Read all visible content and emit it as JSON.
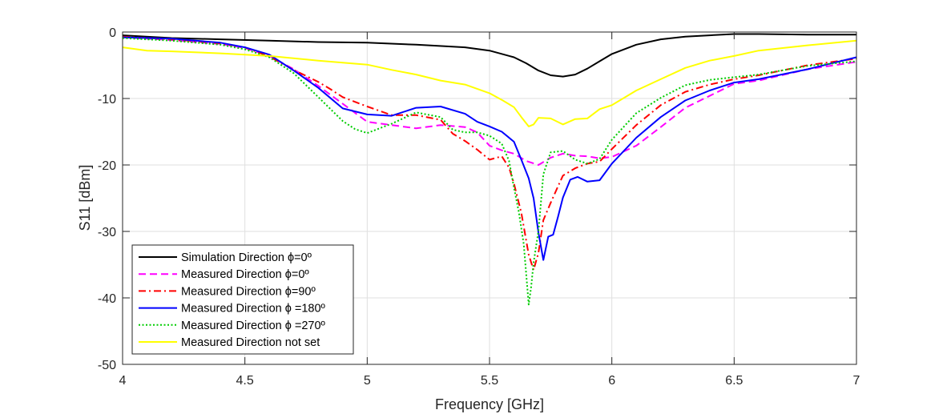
{
  "chart_data": {
    "type": "line",
    "title": "",
    "xlabel": "Frequency [GHz]",
    "ylabel": "S11 [dBm]",
    "xlim": [
      4,
      7
    ],
    "ylim": [
      -50,
      0
    ],
    "xticks": [
      4,
      4.5,
      5,
      5.5,
      6,
      6.5,
      7
    ],
    "yticks": [
      0,
      -10,
      -20,
      -30,
      -40,
      -50
    ],
    "xtick_labels": [
      "4",
      "4.5",
      "5",
      "5.5",
      "6",
      "6.5",
      "7"
    ],
    "ytick_labels": [
      "0",
      "-10",
      "-20",
      "-30",
      "-40",
      "-50"
    ],
    "grid": true,
    "legend_position": "bottom-left",
    "series": [
      {
        "name": "Simulation Direction ϕ=0º",
        "color": "#000000",
        "dash": "solid",
        "x": [
          4.0,
          4.2,
          4.4,
          4.6,
          4.8,
          5.0,
          5.2,
          5.4,
          5.5,
          5.6,
          5.65,
          5.7,
          5.75,
          5.8,
          5.85,
          5.9,
          5.95,
          6.0,
          6.1,
          6.2,
          6.3,
          6.4,
          6.5,
          6.6,
          6.8,
          7.0
        ],
        "y": [
          -0.5,
          -0.9,
          -1.1,
          -1.3,
          -1.5,
          -1.6,
          -1.9,
          -2.3,
          -2.8,
          -3.8,
          -4.7,
          -5.8,
          -6.5,
          -6.7,
          -6.4,
          -5.5,
          -4.4,
          -3.3,
          -1.9,
          -1.1,
          -0.7,
          -0.5,
          -0.3,
          -0.3,
          -0.4,
          -0.4
        ]
      },
      {
        "name": "Measured Direction ϕ=0º",
        "color": "#ff00ff",
        "dash": "dashed",
        "x": [
          4.0,
          4.2,
          4.4,
          4.5,
          4.6,
          4.7,
          4.8,
          4.9,
          5.0,
          5.1,
          5.2,
          5.3,
          5.4,
          5.45,
          5.5,
          5.55,
          5.6,
          5.65,
          5.7,
          5.75,
          5.8,
          5.85,
          5.9,
          5.95,
          6.0,
          6.1,
          6.2,
          6.3,
          6.4,
          6.5,
          6.6,
          6.8,
          7.0
        ],
        "y": [
          -0.8,
          -1.2,
          -1.8,
          -2.4,
          -3.6,
          -5.6,
          -8.1,
          -10.8,
          -13.5,
          -14.0,
          -14.5,
          -14.0,
          -14.3,
          -15.1,
          -17.1,
          -17.8,
          -18.3,
          -19.4,
          -20.0,
          -18.9,
          -18.3,
          -18.6,
          -18.7,
          -19.0,
          -18.8,
          -17.1,
          -14.3,
          -11.4,
          -9.6,
          -7.8,
          -7.3,
          -5.6,
          -4.5
        ]
      },
      {
        "name": "Measured Direction ϕ=90º",
        "color": "#ff0000",
        "dash": "dashdot",
        "x": [
          4.0,
          4.2,
          4.4,
          4.5,
          4.6,
          4.7,
          4.8,
          4.85,
          4.9,
          5.0,
          5.1,
          5.2,
          5.3,
          5.35,
          5.4,
          5.45,
          5.5,
          5.55,
          5.58,
          5.6,
          5.63,
          5.66,
          5.68,
          5.7,
          5.72,
          5.75,
          5.78,
          5.8,
          5.85,
          5.9,
          5.95,
          6.0,
          6.1,
          6.2,
          6.3,
          6.4,
          6.5,
          6.6,
          6.8,
          7.0
        ],
        "y": [
          -0.7,
          -1.1,
          -1.7,
          -2.3,
          -3.7,
          -5.7,
          -7.5,
          -8.6,
          -9.8,
          -11.2,
          -12.5,
          -12.5,
          -13.2,
          -15.3,
          -16.4,
          -17.7,
          -19.2,
          -18.7,
          -20.4,
          -22.8,
          -27.2,
          -33.5,
          -35.8,
          -33.2,
          -28.3,
          -25.7,
          -23.2,
          -21.6,
          -20.5,
          -19.8,
          -19.5,
          -17.6,
          -14.0,
          -11.0,
          -9.0,
          -7.9,
          -7.1,
          -6.5,
          -5.0,
          -4.0
        ]
      },
      {
        "name": "Measured Direction ϕ =180º",
        "color": "#0000ff",
        "dash": "solid",
        "x": [
          4.0,
          4.2,
          4.4,
          4.5,
          4.6,
          4.7,
          4.8,
          4.9,
          5.0,
          5.1,
          5.2,
          5.3,
          5.4,
          5.45,
          5.5,
          5.55,
          5.6,
          5.63,
          5.66,
          5.68,
          5.7,
          5.72,
          5.74,
          5.76,
          5.78,
          5.8,
          5.83,
          5.86,
          5.9,
          5.95,
          6.0,
          6.1,
          6.2,
          6.3,
          6.4,
          6.5,
          6.6,
          6.8,
          7.0
        ],
        "y": [
          -0.8,
          -1.0,
          -1.6,
          -2.3,
          -3.4,
          -5.8,
          -8.4,
          -11.5,
          -12.4,
          -12.6,
          -11.4,
          -11.2,
          -12.3,
          -13.5,
          -14.2,
          -15.0,
          -16.5,
          -19.2,
          -22.0,
          -25.0,
          -30.2,
          -34.3,
          -30.8,
          -30.5,
          -27.8,
          -24.9,
          -22.2,
          -21.8,
          -22.5,
          -22.3,
          -19.8,
          -15.9,
          -12.8,
          -10.3,
          -8.8,
          -7.6,
          -7.1,
          -5.6,
          -3.8
        ]
      },
      {
        "name": "Measured Direction ϕ =270º",
        "color": "#00cc00",
        "dash": "dotted",
        "x": [
          4.0,
          4.2,
          4.4,
          4.5,
          4.6,
          4.7,
          4.8,
          4.9,
          4.95,
          5.0,
          5.05,
          5.1,
          5.2,
          5.3,
          5.35,
          5.4,
          5.45,
          5.5,
          5.55,
          5.58,
          5.6,
          5.62,
          5.64,
          5.66,
          5.67,
          5.68,
          5.7,
          5.72,
          5.75,
          5.8,
          5.85,
          5.9,
          5.95,
          6.0,
          6.1,
          6.2,
          6.3,
          6.4,
          6.5,
          6.6,
          6.8,
          7.0
        ],
        "y": [
          -0.9,
          -1.3,
          -1.9,
          -2.6,
          -3.8,
          -6.2,
          -9.8,
          -13.4,
          -14.6,
          -15.2,
          -14.5,
          -13.8,
          -12.1,
          -12.8,
          -14.7,
          -15.1,
          -15.1,
          -15.6,
          -16.8,
          -19.4,
          -23.4,
          -27.1,
          -31.9,
          -41.0,
          -38.4,
          -34.7,
          -29.9,
          -21.4,
          -18.1,
          -17.9,
          -19.2,
          -19.8,
          -19.1,
          -16.2,
          -12.2,
          -9.9,
          -8.0,
          -7.2,
          -6.8,
          -6.4,
          -5.1,
          -4.4
        ]
      },
      {
        "name": "Measured Direction not set",
        "color": "#ffff00",
        "dash": "solid",
        "x": [
          4.0,
          4.1,
          4.2,
          4.4,
          4.6,
          4.8,
          5.0,
          5.1,
          5.2,
          5.3,
          5.4,
          5.5,
          5.55,
          5.6,
          5.63,
          5.66,
          5.68,
          5.7,
          5.75,
          5.8,
          5.85,
          5.9,
          5.95,
          6.0,
          6.1,
          6.2,
          6.3,
          6.4,
          6.5,
          6.6,
          6.8,
          7.0
        ],
        "y": [
          -2.3,
          -2.8,
          -2.9,
          -3.2,
          -3.6,
          -4.3,
          -4.9,
          -5.7,
          -6.4,
          -7.3,
          -7.9,
          -9.2,
          -10.2,
          -11.3,
          -12.8,
          -14.2,
          -13.9,
          -12.9,
          -13.0,
          -13.9,
          -13.1,
          -13.0,
          -11.6,
          -11.0,
          -8.8,
          -7.1,
          -5.4,
          -4.3,
          -3.6,
          -2.8,
          -2.0,
          -1.3
        ]
      }
    ]
  }
}
